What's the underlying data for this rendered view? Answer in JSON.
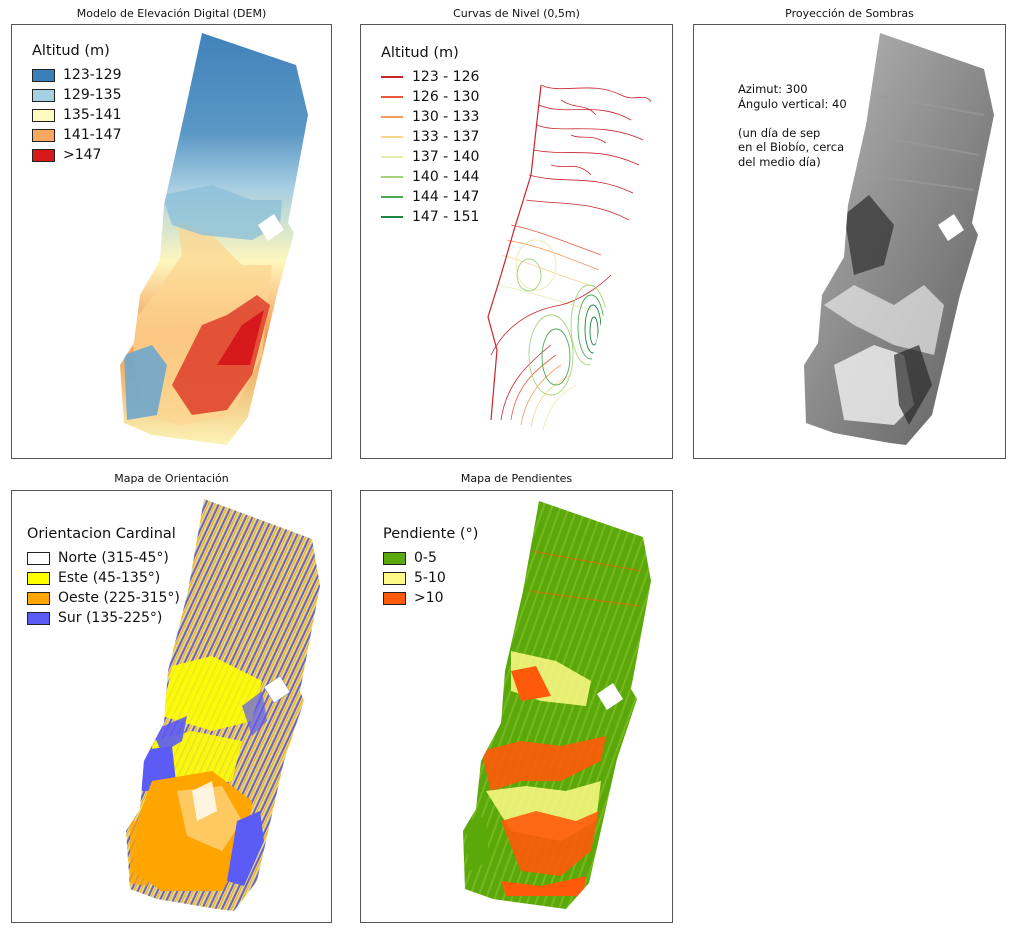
{
  "dem": {
    "title": "Modelo de Elevación Digital (DEM)",
    "legend_title": "Altitud (m)",
    "items": [
      {
        "label": "123-129",
        "color": "#3a7fb8"
      },
      {
        "label": "129-135",
        "color": "#a6cfe2"
      },
      {
        "label": "135-141",
        "color": "#fdfbbf"
      },
      {
        "label": "141-147",
        "color": "#f9a95f"
      },
      {
        "label": ">147",
        "color": "#d7191c"
      }
    ]
  },
  "contours": {
    "title": "Curvas de Nivel (0,5m)",
    "legend_title": "Altitud (m)",
    "items": [
      {
        "label": "123 - 126",
        "color": "#c8242a"
      },
      {
        "label": "126 - 130",
        "color": "#e85a3a"
      },
      {
        "label": "130 - 133",
        "color": "#f79a5e"
      },
      {
        "label": "133 - 137",
        "color": "#f8d48c"
      },
      {
        "label": "137 - 140",
        "color": "#e6eeae"
      },
      {
        "label": "140 - 144",
        "color": "#a3d47c"
      },
      {
        "label": "144 - 147",
        "color": "#4caa56"
      },
      {
        "label": "147 - 151",
        "color": "#1a8640"
      }
    ]
  },
  "hillshade": {
    "title": "Proyección de Sombras",
    "notes": [
      "Azimut: 300",
      "Ángulo vertical: 40",
      "",
      "(un día de sep",
      "en el Biobío, cerca",
      "del medio día)"
    ]
  },
  "aspect": {
    "title": "Mapa de Orientación",
    "legend_title": "Orientacion Cardinal",
    "items": [
      {
        "label": "Norte (315-45°)",
        "color": "#ffffff"
      },
      {
        "label": "Este (45-135°)",
        "color": "#ffff00"
      },
      {
        "label": "Oeste (225-315°)",
        "color": "#ffa500"
      },
      {
        "label": "Sur (135-225°)",
        "color": "#5b5bf5"
      }
    ]
  },
  "slope": {
    "title": "Mapa de Pendientes",
    "legend_title": "Pendiente (°)",
    "items": [
      {
        "label": "0-5",
        "color": "#5aa80a"
      },
      {
        "label": "5-10",
        "color": "#fffa86"
      },
      {
        "label": ">10",
        "color": "#ff5a0a"
      }
    ]
  }
}
